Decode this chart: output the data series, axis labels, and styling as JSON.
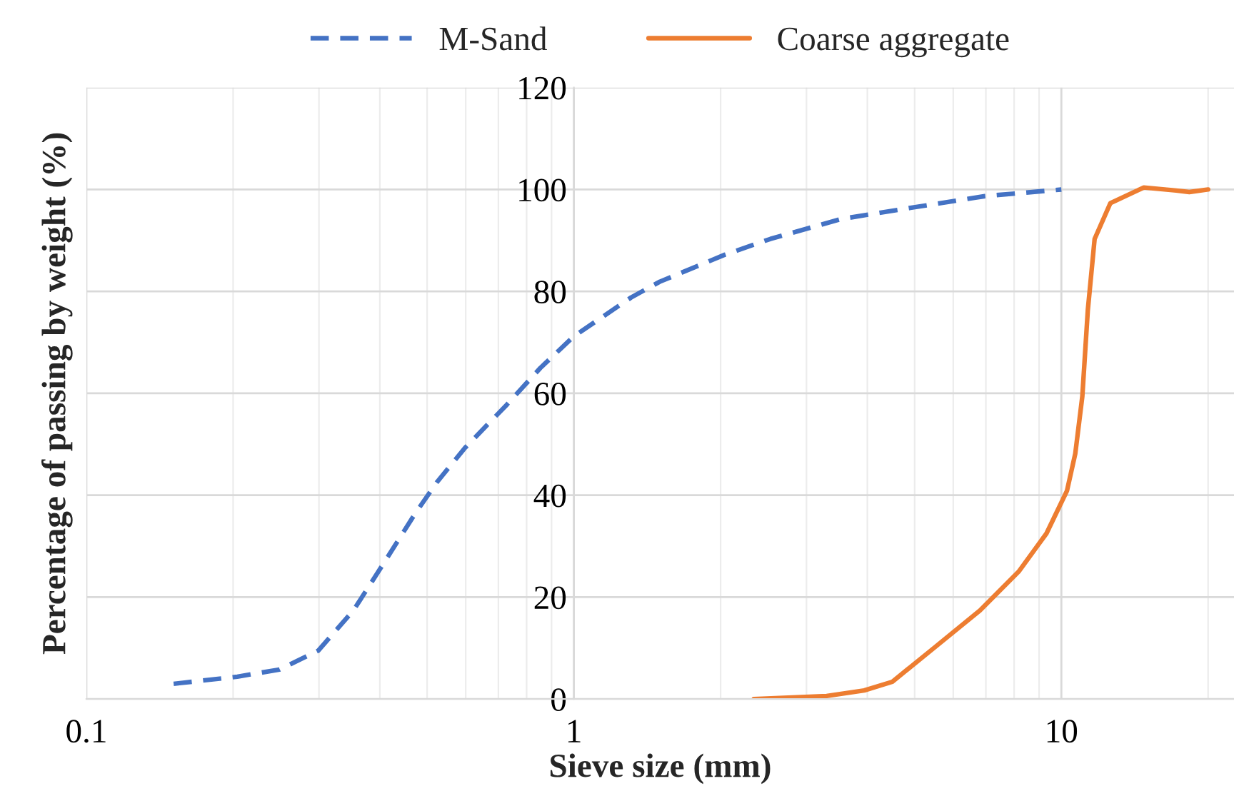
{
  "chart_data": {
    "type": "line",
    "xlabel": "Sieve size (mm)",
    "ylabel": "Percentage of passing by weight (%)",
    "log": "x",
    "xlim": [
      0.1,
      22.6
    ],
    "xticks": [
      0.1,
      1,
      10
    ],
    "ylim": [
      0,
      120
    ],
    "yticks": [
      0,
      20,
      40,
      60,
      80,
      100,
      120
    ],
    "grid": true,
    "legend": "top",
    "marker": "none",
    "series": [
      {
        "name": "M-Sand",
        "color": "#4472c4",
        "line_style": "dashed",
        "x": [
          0.151,
          0.204,
          0.249,
          0.299,
          0.353,
          0.402,
          0.471,
          0.524,
          0.598,
          0.729,
          0.854,
          1.0,
          1.31,
          1.5,
          2.04,
          2.53,
          3.53,
          4.9,
          6.97,
          10
        ],
        "values": [
          3.0,
          4.4,
          5.8,
          9.5,
          17.4,
          25.8,
          36.2,
          42.6,
          49.3,
          57.8,
          65.0,
          71.2,
          78.8,
          81.9,
          87.2,
          90.3,
          94.2,
          96.4,
          98.7,
          100
        ]
      },
      {
        "name": "Coarse aggregate",
        "color": "#ed7d31",
        "line_style": "solid",
        "x": [
          2.34,
          3.3,
          3.94,
          4.5,
          5.49,
          6.81,
          8.17,
          9.32,
          10.27,
          10.68,
          11.04,
          11.33,
          11.7,
          12.6,
          14.76,
          17.2,
          18.3,
          20
        ],
        "values": [
          0,
          0.6,
          1.7,
          3.4,
          10.1,
          17.4,
          25.0,
          32.5,
          40.9,
          48.2,
          59.4,
          76.3,
          90.3,
          97.3,
          100.4,
          99.8,
          99.5,
          100
        ]
      }
    ]
  }
}
